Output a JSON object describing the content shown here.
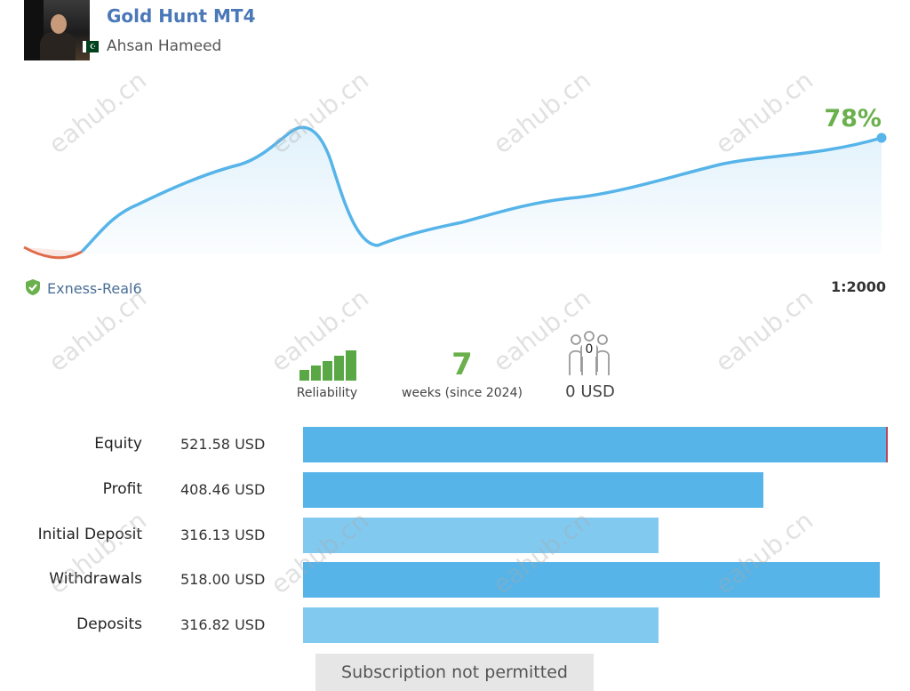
{
  "header": {
    "title": "Gold Hunt MT4",
    "author": "Ahsan Hameed",
    "flag_symbol": "☪"
  },
  "chart": {
    "gain_label": "78%",
    "line_color": "#56b4e9",
    "negative_color": "#e06a4a"
  },
  "account": {
    "broker": "Exness-Real6",
    "leverage": "1:2000"
  },
  "stats": {
    "reliability_label": "Reliability",
    "weeks_value": "7",
    "weeks_label": "weeks (since 2024)",
    "subscribers_count": "0",
    "subscribers_funds": "0 USD"
  },
  "rows": [
    {
      "label": "Equity",
      "value": "521.58 USD",
      "fraction": 1.0
    },
    {
      "label": "Profit",
      "value": "408.46 USD",
      "fraction": 0.79
    },
    {
      "label": "Initial Deposit",
      "value": "316.13 USD",
      "fraction": 0.61
    },
    {
      "label": "Withdrawals",
      "value": "518.00 USD",
      "fraction": 0.99
    },
    {
      "label": "Deposits",
      "value": "316.82 USD",
      "fraction": 0.61
    }
  ],
  "subscribe": {
    "label": "Subscription not permitted"
  },
  "watermark": "eahub.cn"
}
